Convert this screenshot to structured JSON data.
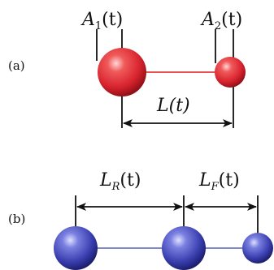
{
  "panel_a": {
    "tag": "(a)",
    "label_left": {
      "name": "A",
      "sub": "1",
      "arg": "(t)"
    },
    "label_right": {
      "name": "A",
      "sub": "2",
      "arg": "(t)"
    },
    "length_label": "L(t)",
    "sphere_color": "#d8232e",
    "connector_color": "#e23b3b"
  },
  "panel_b": {
    "tag": "(b)",
    "label_rear": {
      "name": "L",
      "sub": "R",
      "arg": "(t)"
    },
    "label_front": {
      "name": "L",
      "sub": "F",
      "arg": "(t)"
    },
    "sphere_color": "#3a3fb0",
    "connector_color": "#6c78c8"
  }
}
